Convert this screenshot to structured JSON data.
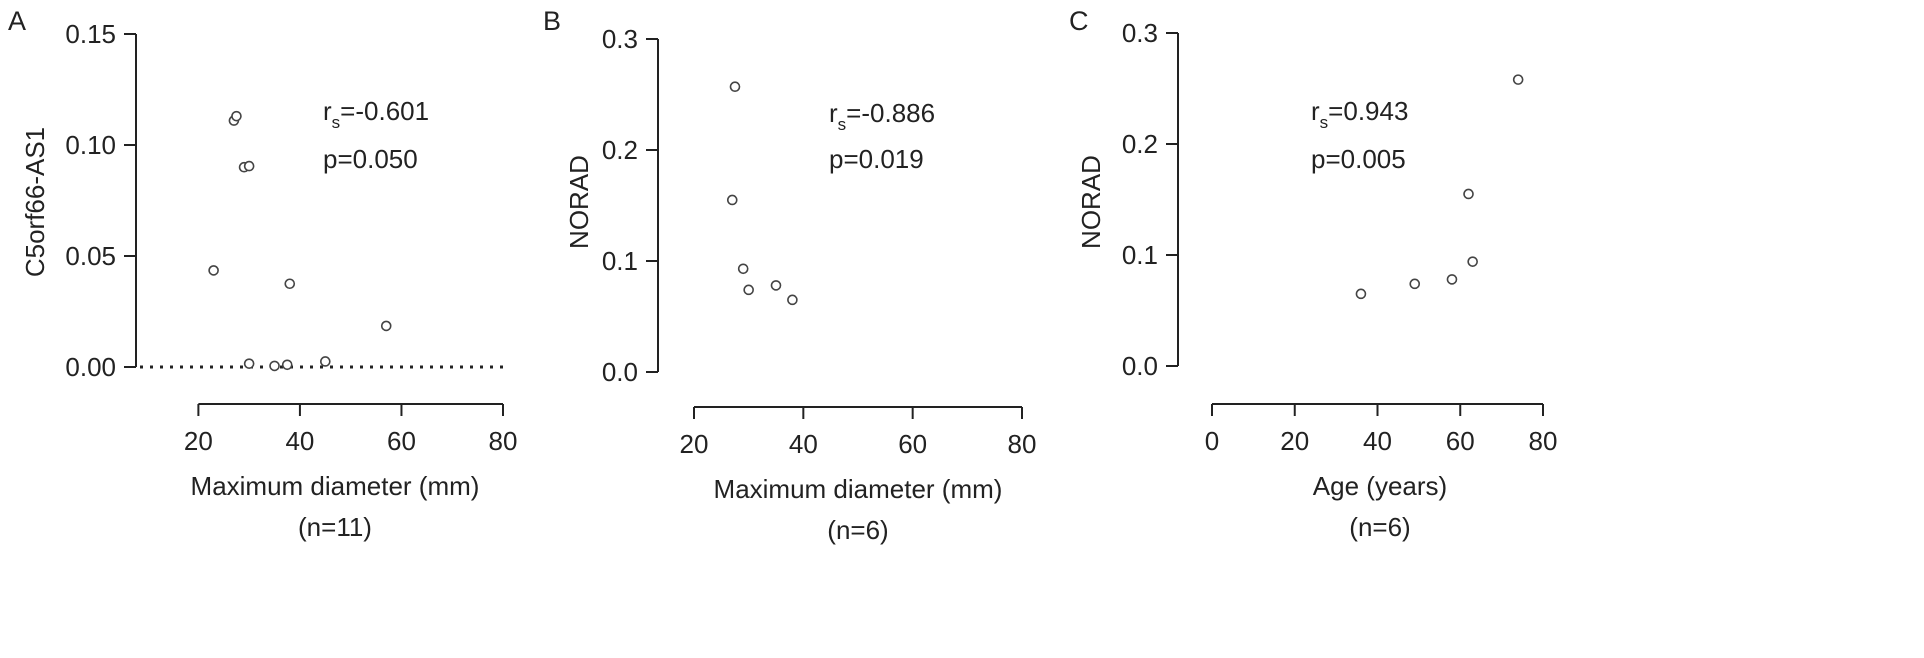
{
  "chart_data": [
    {
      "type": "scatter",
      "panel_label": "A",
      "ylabel": "C5orf66-AS1",
      "xlabel": "Maximum diameter (mm)",
      "sample_note": "(n=11)",
      "stat_r_prefix": "r",
      "stat_r_subscript": "s",
      "stat_r_value": "=-0.601",
      "stat_p": "p=0.050",
      "xlim": [
        15,
        80
      ],
      "ylim": [
        0,
        0.15
      ],
      "xticks": [
        20,
        40,
        60,
        80
      ],
      "xtick_labels": [
        "20",
        "40",
        "60",
        "80"
      ],
      "yticks": [
        0,
        0.05,
        0.1,
        0.15
      ],
      "ytick_labels": [
        "0.00",
        "0.05",
        "0.10",
        "0.15"
      ],
      "zero_reference_line": true,
      "points": [
        {
          "x": 23,
          "y": 0.0435
        },
        {
          "x": 27,
          "y": 0.111
        },
        {
          "x": 27.5,
          "y": 0.113
        },
        {
          "x": 29,
          "y": 0.09
        },
        {
          "x": 30,
          "y": 0.0905
        },
        {
          "x": 30,
          "y": 0.0015
        },
        {
          "x": 35,
          "y": 0.0005
        },
        {
          "x": 37.5,
          "y": 0.001
        },
        {
          "x": 38,
          "y": 0.0375
        },
        {
          "x": 45,
          "y": 0.0025
        },
        {
          "x": 57,
          "y": 0.0185
        }
      ]
    },
    {
      "type": "scatter",
      "panel_label": "B",
      "ylabel": "NORAD",
      "xlabel": "Maximum diameter (mm)",
      "sample_note": "(n=6)",
      "stat_r_prefix": "r",
      "stat_r_subscript": "s",
      "stat_r_value": "=-0.886",
      "stat_p": "p=0.019",
      "xlim": [
        20,
        80
      ],
      "ylim": [
        0,
        0.3
      ],
      "xticks": [
        20,
        40,
        60,
        80
      ],
      "xtick_labels": [
        "20",
        "40",
        "60",
        "80"
      ],
      "yticks": [
        0,
        0.1,
        0.2,
        0.3
      ],
      "ytick_labels": [
        "0.0",
        "0.1",
        "0.2",
        "0.3"
      ],
      "zero_reference_line": false,
      "points": [
        {
          "x": 27,
          "y": 0.155
        },
        {
          "x": 27.5,
          "y": 0.257
        },
        {
          "x": 29,
          "y": 0.093
        },
        {
          "x": 30,
          "y": 0.074
        },
        {
          "x": 35,
          "y": 0.078
        },
        {
          "x": 38,
          "y": 0.065
        }
      ]
    },
    {
      "type": "scatter",
      "panel_label": "C",
      "ylabel": "NORAD",
      "xlabel": "Age (years)",
      "sample_note": "(n=6)",
      "stat_r_prefix": "r",
      "stat_r_subscript": "s",
      "stat_r_value": "=0.943",
      "stat_p": "p=0.005",
      "xlim": [
        0,
        80
      ],
      "ylim": [
        0,
        0.3
      ],
      "xticks": [
        0,
        20,
        40,
        60,
        80
      ],
      "xtick_labels": [
        "0",
        "20",
        "40",
        "60",
        "80"
      ],
      "yticks": [
        0,
        0.1,
        0.2,
        0.3
      ],
      "ytick_labels": [
        "0.0",
        "0.1",
        "0.2",
        "0.3"
      ],
      "zero_reference_line": false,
      "points": [
        {
          "x": 36,
          "y": 0.065
        },
        {
          "x": 49,
          "y": 0.074
        },
        {
          "x": 58,
          "y": 0.078
        },
        {
          "x": 62,
          "y": 0.155
        },
        {
          "x": 63,
          "y": 0.094
        },
        {
          "x": 74,
          "y": 0.258
        }
      ]
    }
  ]
}
